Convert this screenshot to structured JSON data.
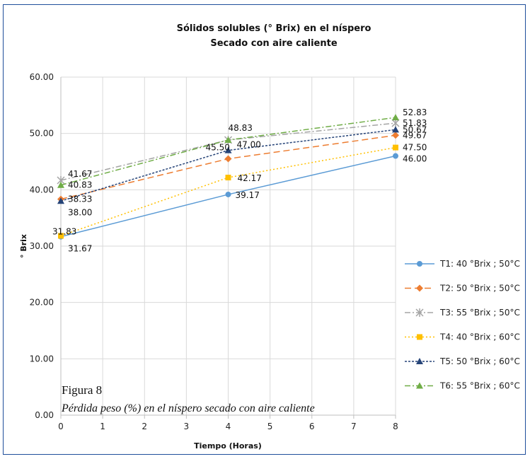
{
  "chart_data": {
    "type": "line",
    "title": "Sólidos solubles (° Brix) en el níspero",
    "subtitle": "Secado con aire caliente",
    "xlabel": "Tiempo (Horas)",
    "ylabel": "° Brix",
    "x": [
      0,
      4,
      8
    ],
    "xlim": [
      0,
      8
    ],
    "xticks": [
      "0",
      "1",
      "2",
      "3",
      "4",
      "5",
      "6",
      "7",
      "8"
    ],
    "ylim": [
      0,
      60
    ],
    "yticks": [
      "0.00",
      "10.00",
      "20.00",
      "30.00",
      "40.00",
      "50.00",
      "60.00"
    ],
    "grid": true,
    "legend_position": "right",
    "series": [
      {
        "name": "T1: 40 °Brix ; 50°C",
        "values": [
          31.67,
          39.17,
          46.0
        ],
        "labels": [
          "31.67",
          "39.17",
          "46.00"
        ],
        "color": "#5b9bd5",
        "dash": "solid",
        "marker": "circle"
      },
      {
        "name": "T2: 50 °Brix ; 50°C",
        "values": [
          38.33,
          45.5,
          49.67
        ],
        "labels": [
          "38.33",
          "45.50",
          "49.67"
        ],
        "color": "#ed7d31",
        "dash": "long-dash",
        "marker": "diamond"
      },
      {
        "name": "T3: 55 °Brix ; 50°C",
        "values": [
          41.67,
          48.83,
          51.83
        ],
        "labels": [
          "41.67",
          "",
          "51.83"
        ],
        "color": "#a5a5a5",
        "dash": "dash-dot",
        "marker": "star"
      },
      {
        "name": "T4: 40 °Brix ; 60°C",
        "values": [
          31.83,
          42.17,
          47.5
        ],
        "labels": [
          "31.83",
          "42.17",
          "47.50"
        ],
        "color": "#ffc000",
        "dash": "dotted",
        "marker": "square"
      },
      {
        "name": "T5: 50 °Brix ; 60°C",
        "values": [
          38.0,
          47.0,
          50.67
        ],
        "labels": [
          "38.00",
          "47.00",
          "50.67"
        ],
        "color": "#264478",
        "dash": "fine-dash",
        "marker": "triangle"
      },
      {
        "name": "T6: 55 °Brix ; 60°C",
        "values": [
          40.83,
          48.83,
          52.83
        ],
        "labels": [
          "40.83",
          "48.83",
          "52.83"
        ],
        "color": "#70ad47",
        "dash": "dash-dot",
        "marker": "triangle"
      }
    ]
  },
  "figure": {
    "label": "Figura 8",
    "caption": "Pérdida peso (%) en el níspero secado con aire caliente"
  }
}
